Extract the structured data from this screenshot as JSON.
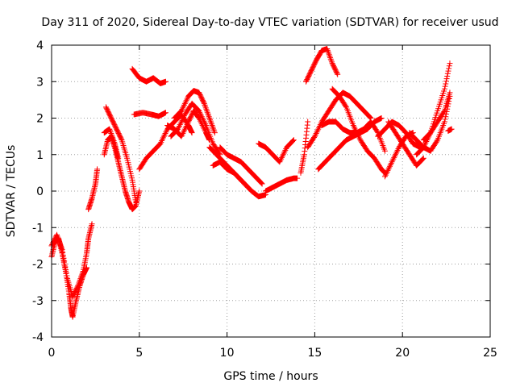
{
  "chart_data": {
    "type": "scatter",
    "title": "Day 311 of 2020, Sidereal Day-to-day VTEC variation (SDTVAR) for receiver usud",
    "xlabel": "GPS time / hours",
    "ylabel": "SDTVAR / TECUs",
    "xlim": [
      0,
      25
    ],
    "ylim": [
      -4,
      4
    ],
    "xticks": [
      "0",
      "5",
      "10",
      "15",
      "20",
      "25"
    ],
    "yticks": [
      "-4",
      "-3",
      "-2",
      "-1",
      "0",
      "1",
      "2",
      "3",
      "4"
    ],
    "grid": true,
    "marker": "+",
    "marker_color": "#ff0000",
    "axis_color": "#000000",
    "grid_color": "#a0a0a0",
    "series": [
      {
        "x": [
          0.0,
          0.2,
          0.4,
          0.6,
          0.8,
          1.0,
          1.1,
          1.2,
          1.4,
          1.6,
          1.8,
          2.0
        ],
        "y": [
          -1.8,
          -1.4,
          -1.3,
          -1.7,
          -2.2,
          -2.8,
          -3.2,
          -3.45,
          -3.0,
          -2.6,
          -2.3,
          -2.1
        ]
      },
      {
        "x": [
          0.0,
          0.3,
          0.6,
          0.9,
          1.2,
          1.5,
          1.8,
          2.0,
          2.1,
          2.3
        ],
        "y": [
          -1.5,
          -1.2,
          -1.6,
          -2.4,
          -2.9,
          -2.6,
          -2.2,
          -1.7,
          -1.3,
          -0.9
        ]
      },
      {
        "x": [
          2.1,
          2.3,
          2.5,
          2.6
        ],
        "y": [
          -0.5,
          -0.2,
          0.2,
          0.6
        ]
      },
      {
        "x": [
          3.0,
          3.2,
          3.4,
          3.6,
          3.8,
          4.0,
          4.2,
          4.4,
          4.6,
          4.8,
          5.0
        ],
        "y": [
          1.0,
          1.4,
          1.5,
          1.2,
          0.8,
          0.4,
          0.0,
          -0.3,
          -0.5,
          -0.4,
          0.0
        ]
      },
      {
        "x": [
          3.1,
          3.4,
          3.7,
          4.0,
          4.3,
          4.6,
          4.8
        ],
        "y": [
          2.3,
          2.0,
          1.7,
          1.4,
          0.9,
          0.3,
          -0.3
        ]
      },
      {
        "x": [
          3.0,
          3.3,
          3.6,
          3.8
        ],
        "y": [
          1.6,
          1.7,
          1.3,
          0.9
        ]
      },
      {
        "x": [
          4.6,
          5.0,
          5.4,
          5.8,
          6.2,
          6.5
        ],
        "y": [
          3.35,
          3.1,
          3.0,
          3.1,
          2.95,
          3.0
        ]
      },
      {
        "x": [
          4.7,
          5.2,
          5.7,
          6.1,
          6.5
        ],
        "y": [
          2.1,
          2.15,
          2.1,
          2.05,
          2.15
        ]
      },
      {
        "x": [
          5.0,
          5.4,
          5.8,
          6.2,
          6.6,
          7.0,
          7.4,
          7.8,
          8.0
        ],
        "y": [
          0.6,
          0.9,
          1.1,
          1.3,
          1.7,
          1.9,
          2.1,
          1.8,
          1.6
        ]
      },
      {
        "x": [
          6.6,
          7.0,
          7.4,
          7.8,
          8.1,
          8.4,
          8.8,
          9.0
        ],
        "y": [
          1.8,
          1.7,
          1.5,
          1.9,
          2.2,
          2.0,
          1.6,
          1.4
        ]
      },
      {
        "x": [
          7.0,
          7.4,
          7.8,
          8.1,
          8.4,
          8.7,
          9.0,
          9.3
        ],
        "y": [
          2.0,
          2.2,
          2.6,
          2.75,
          2.7,
          2.4,
          2.0,
          1.6
        ]
      },
      {
        "x": [
          6.8,
          7.2,
          7.6,
          8.0,
          8.4,
          8.8,
          9.2,
          9.6
        ],
        "y": [
          1.5,
          1.7,
          2.1,
          2.4,
          2.2,
          1.8,
          1.3,
          1.0
        ]
      },
      {
        "x": [
          9.0,
          9.4,
          9.8,
          10.2,
          10.6,
          11.0,
          11.4,
          11.8,
          12.2
        ],
        "y": [
          1.2,
          1.0,
          0.8,
          0.6,
          0.4,
          0.2,
          0.0,
          -0.15,
          -0.1
        ]
      },
      {
        "x": [
          9.6,
          10.0,
          10.4,
          10.8,
          11.2,
          11.6,
          12.0
        ],
        "y": [
          1.2,
          1.0,
          0.9,
          0.8,
          0.6,
          0.4,
          0.2
        ]
      },
      {
        "x": [
          9.2,
          9.6,
          10.0,
          10.4,
          10.8,
          11.2
        ],
        "y": [
          0.7,
          0.8,
          0.6,
          0.5,
          0.3,
          0.1
        ]
      },
      {
        "x": [
          11.8,
          12.2,
          12.6,
          13.0,
          13.4,
          13.8
        ],
        "y": [
          1.3,
          1.2,
          1.0,
          0.8,
          1.2,
          1.4
        ]
      },
      {
        "x": [
          12.2,
          12.6,
          13.0,
          13.4,
          13.8,
          14.0
        ],
        "y": [
          0.0,
          0.1,
          0.2,
          0.3,
          0.35,
          0.35
        ]
      },
      {
        "x": [
          14.2,
          14.4,
          14.6
        ],
        "y": [
          0.5,
          1.0,
          1.9
        ]
      },
      {
        "x": [
          14.5,
          14.8,
          15.1,
          15.4,
          15.7,
          16.0,
          16.3
        ],
        "y": [
          3.0,
          3.3,
          3.6,
          3.85,
          3.9,
          3.5,
          3.2
        ]
      },
      {
        "x": [
          14.6,
          15.0,
          15.4,
          15.8,
          16.2,
          16.6,
          17.0,
          17.4,
          17.8,
          18.2
        ],
        "y": [
          1.2,
          1.5,
          1.9,
          2.2,
          2.5,
          2.7,
          2.6,
          2.4,
          2.2,
          2.0
        ]
      },
      {
        "x": [
          15.4,
          15.8,
          16.2,
          16.6,
          17.0,
          17.4,
          17.8,
          18.2,
          18.6,
          19.0
        ],
        "y": [
          1.8,
          1.9,
          1.9,
          1.7,
          1.6,
          1.6,
          1.7,
          1.9,
          1.6,
          1.1
        ]
      },
      {
        "x": [
          15.2,
          15.6,
          16.0,
          16.4,
          16.8,
          17.2,
          17.6,
          18.0,
          18.4,
          18.8
        ],
        "y": [
          0.6,
          0.8,
          1.0,
          1.2,
          1.4,
          1.5,
          1.6,
          1.7,
          1.9,
          2.0
        ]
      },
      {
        "x": [
          16.0,
          16.4,
          16.8,
          17.2,
          17.6,
          18.0,
          18.4,
          18.8,
          19.0
        ],
        "y": [
          2.8,
          2.6,
          2.3,
          1.8,
          1.4,
          1.1,
          0.9,
          0.6,
          0.5
        ]
      },
      {
        "x": [
          18.6,
          19.0,
          19.4,
          19.8,
          20.2,
          20.6,
          21.0
        ],
        "y": [
          1.5,
          1.7,
          1.9,
          1.8,
          1.6,
          1.3,
          1.2
        ]
      },
      {
        "x": [
          19.0,
          19.4,
          19.8,
          20.2,
          20.6
        ],
        "y": [
          0.4,
          0.8,
          1.2,
          1.5,
          1.6
        ]
      },
      {
        "x": [
          19.2,
          19.6,
          20.0,
          20.4,
          20.8,
          21.2
        ],
        "y": [
          1.9,
          1.6,
          1.3,
          1.0,
          0.7,
          0.9
        ]
      },
      {
        "x": [
          20.4,
          20.8,
          21.2,
          21.6,
          22.0,
          22.4,
          22.7
        ],
        "y": [
          1.6,
          1.4,
          1.2,
          1.1,
          1.4,
          1.9,
          2.6
        ]
      },
      {
        "x": [
          20.8,
          21.2,
          21.6,
          22.0,
          22.4,
          22.7
        ],
        "y": [
          1.0,
          1.2,
          1.6,
          2.2,
          2.8,
          3.5
        ]
      },
      {
        "x": [
          21.2,
          21.6,
          22.0,
          22.4,
          22.7
        ],
        "y": [
          1.4,
          1.6,
          1.9,
          2.2,
          2.7
        ]
      },
      {
        "x": [
          22.6,
          22.8
        ],
        "y": [
          1.65,
          1.7
        ]
      }
    ]
  }
}
